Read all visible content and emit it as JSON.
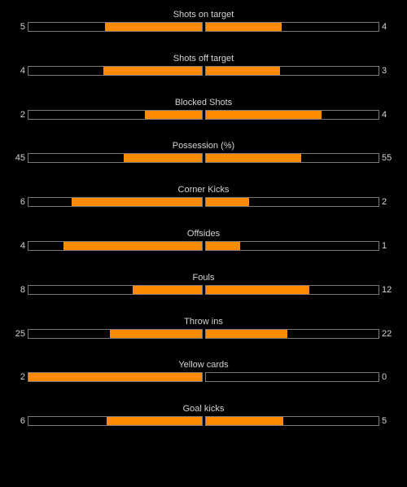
{
  "colors": {
    "background": "#000000",
    "bar_fill": "#ff8c00",
    "bar_border": "#7a7a7a",
    "text": "#d4d4d4"
  },
  "stats": [
    {
      "label": "Shots on target",
      "home": "5",
      "away": "4",
      "home_fill": 0.56,
      "away_fill": 0.44
    },
    {
      "label": "Shots off target",
      "home": "4",
      "away": "3",
      "home_fill": 0.57,
      "away_fill": 0.43
    },
    {
      "label": "Blocked Shots",
      "home": "2",
      "away": "4",
      "home_fill": 0.33,
      "away_fill": 0.67
    },
    {
      "label": "Possession (%)",
      "home": "45",
      "away": "55",
      "home_fill": 0.45,
      "away_fill": 0.55
    },
    {
      "label": "Corner Kicks",
      "home": "6",
      "away": "2",
      "home_fill": 0.75,
      "away_fill": 0.25
    },
    {
      "label": "Offsides",
      "home": "4",
      "away": "1",
      "home_fill": 0.8,
      "away_fill": 0.2
    },
    {
      "label": "Fouls",
      "home": "8",
      "away": "12",
      "home_fill": 0.4,
      "away_fill": 0.6
    },
    {
      "label": "Throw ins",
      "home": "25",
      "away": "22",
      "home_fill": 0.53,
      "away_fill": 0.47
    },
    {
      "label": "Yellow cards",
      "home": "2",
      "away": "0",
      "home_fill": 1.0,
      "away_fill": 0.0
    },
    {
      "label": "Goal kicks",
      "home": "6",
      "away": "5",
      "home_fill": 0.55,
      "away_fill": 0.45
    }
  ]
}
